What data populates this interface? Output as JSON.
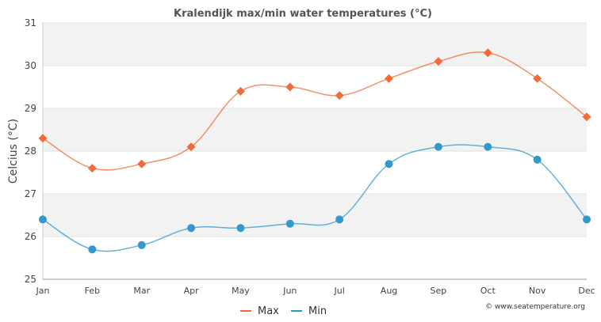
{
  "chart_data": {
    "type": "line",
    "title": "Kralendijk max/min water temperatures (°C)",
    "xlabel": "",
    "ylabel": "Celcius (°C)",
    "categories": [
      "Jan",
      "Feb",
      "Mar",
      "Apr",
      "May",
      "Jun",
      "Jul",
      "Aug",
      "Sep",
      "Oct",
      "Nov",
      "Dec"
    ],
    "ylim": [
      25,
      31
    ],
    "yticks": [
      25,
      26,
      27,
      28,
      29,
      30,
      31
    ],
    "grid": "alternating horizontal bands",
    "legend_position": "bottom-center",
    "series": [
      {
        "name": "Max",
        "color": "#f26b38",
        "marker": "diamond",
        "values": [
          28.3,
          27.6,
          27.7,
          28.1,
          29.4,
          29.5,
          29.3,
          29.7,
          30.1,
          30.3,
          29.7,
          28.8
        ]
      },
      {
        "name": "Min",
        "color": "#3399cc",
        "marker": "circle",
        "values": [
          26.4,
          25.7,
          25.8,
          26.2,
          26.2,
          26.3,
          26.4,
          27.7,
          28.1,
          28.1,
          27.8,
          26.4
        ]
      }
    ],
    "credit": "© www.seatemperature.org"
  }
}
